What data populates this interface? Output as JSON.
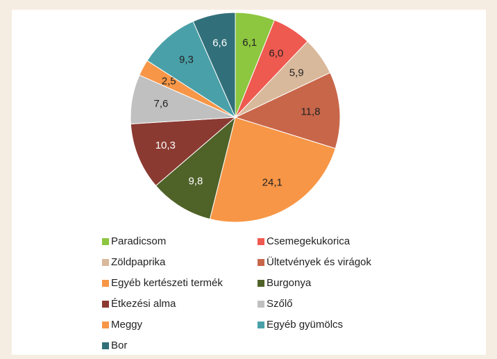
{
  "chart_data": {
    "type": "pie",
    "categories": [
      "Paradicsom",
      "Csemegekukorica",
      "Zöldpaprika",
      "Ültetvények és virágok",
      "Egyéb kertészeti termék",
      "Burgonya",
      "Étkezési alma",
      "Szőlő",
      "Meggy",
      "Egyéb gyümölcs",
      "Bor"
    ],
    "values": [
      6.1,
      6.0,
      5.9,
      11.8,
      24.1,
      9.8,
      10.3,
      7.6,
      2.5,
      9.3,
      6.6
    ],
    "value_labels": [
      "6,1",
      "6,0",
      "5,9",
      "11,8",
      "24,1",
      "9,8",
      "10,3",
      "7,6",
      "2,5",
      "9,3",
      "6,6"
    ],
    "colors": [
      "#8dc63f",
      "#ef5a50",
      "#d9b99b",
      "#c8664a",
      "#f79646",
      "#4f6228",
      "#8b3a32",
      "#c0c0c0",
      "#f79646",
      "#4aa0a8",
      "#31707a"
    ],
    "legend": "bottom"
  }
}
